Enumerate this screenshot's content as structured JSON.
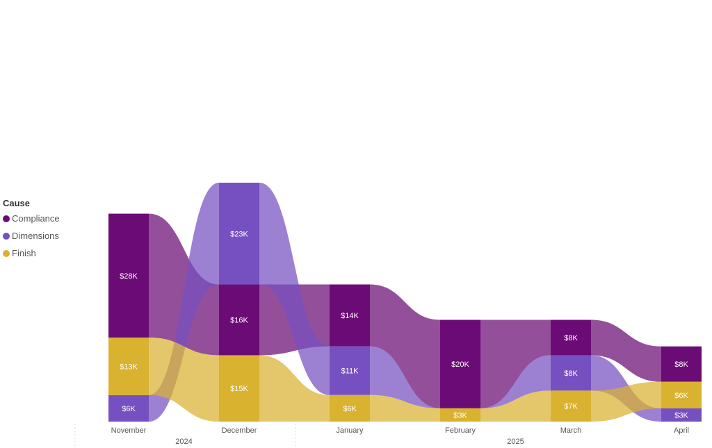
{
  "chart_data": {
    "type": "ribbon",
    "legend": {
      "title": "Cause",
      "position": "left",
      "items": [
        "Compliance",
        "Dimensions",
        "Finish"
      ]
    },
    "colors": {
      "Compliance": "#6b0b75",
      "Dimensions": "#7650c0",
      "Finish": "#d9b230"
    },
    "categories": [
      "November",
      "December",
      "January",
      "February",
      "March",
      "April"
    ],
    "years": [
      {
        "label": "2024",
        "spans": [
          "November",
          "December"
        ]
      },
      {
        "label": "2025",
        "spans": [
          "January",
          "February",
          "March",
          "April"
        ]
      }
    ],
    "series": [
      {
        "name": "Compliance",
        "values": [
          28,
          16,
          14,
          20,
          8,
          8
        ],
        "labels": [
          "$28K",
          "$16K",
          "$14K",
          "$20K",
          "$8K",
          "$8K"
        ]
      },
      {
        "name": "Dimensions",
        "values": [
          6,
          23,
          11,
          0,
          8,
          3
        ],
        "labels": [
          "$6K",
          "$23K",
          "$11K",
          "",
          "$8K",
          "$3K"
        ]
      },
      {
        "name": "Finish",
        "values": [
          13,
          15,
          6,
          3,
          7,
          6
        ],
        "labels": [
          "$13K",
          "$15K",
          "$6K",
          "$3K",
          "$7K",
          "$6K"
        ]
      }
    ],
    "stack_order_bottom_to_top": [
      [
        "Dimensions",
        "Finish",
        "Compliance"
      ],
      [
        "Finish",
        "Compliance",
        "Dimensions"
      ],
      [
        "Finish",
        "Dimensions",
        "Compliance"
      ],
      [
        "Finish",
        "Dimensions",
        "Compliance"
      ],
      [
        "Finish",
        "Dimensions",
        "Compliance"
      ],
      [
        "Dimensions",
        "Finish",
        "Compliance"
      ]
    ],
    "unit": "$K"
  }
}
